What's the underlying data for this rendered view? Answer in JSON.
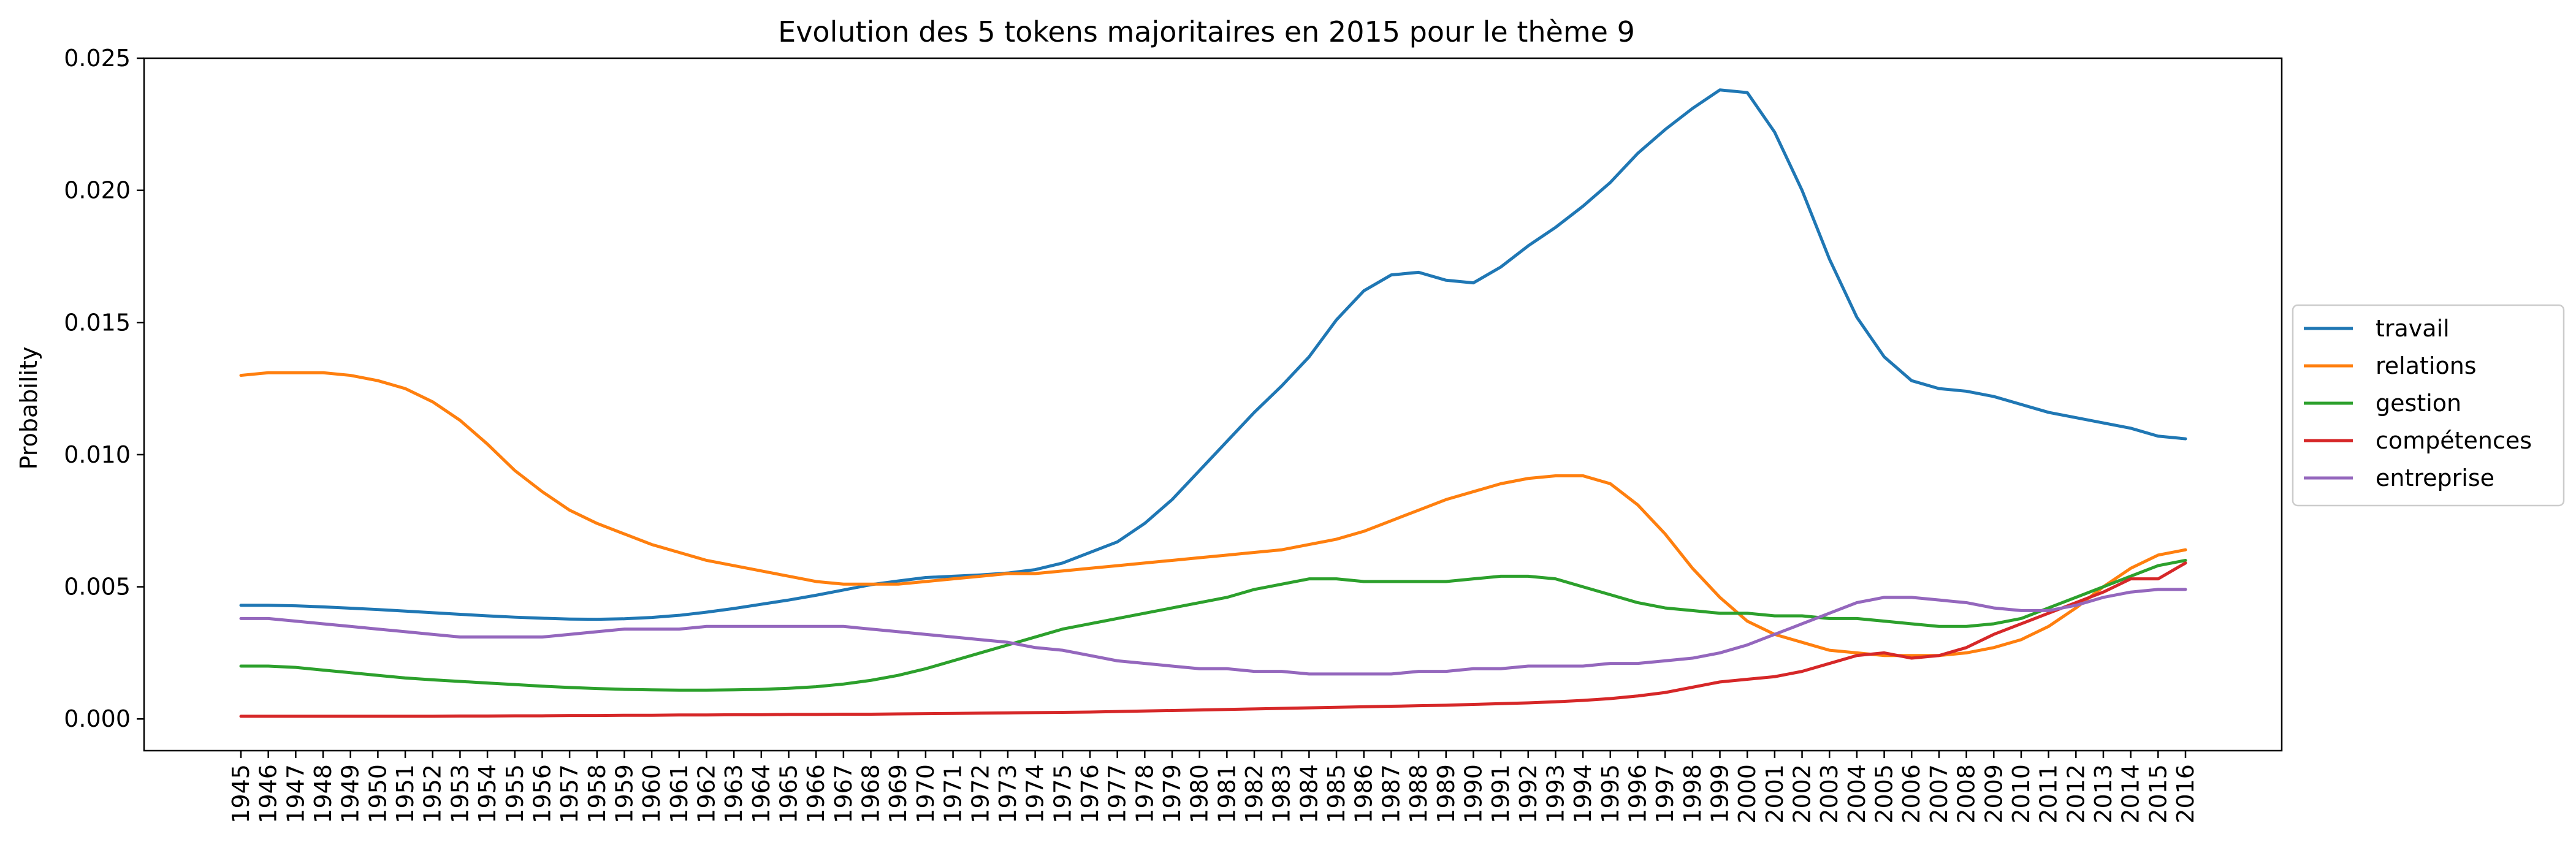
{
  "chart_data": {
    "type": "line",
    "title": "Evolution des 5 tokens majoritaires en 2015 pour le thème 9",
    "xlabel": "",
    "ylabel": "Probability",
    "ylim": [
      -0.0012,
      0.025
    ],
    "yticks": [
      "0.000",
      "0.005",
      "0.010",
      "0.015",
      "0.020",
      "0.025"
    ],
    "ytick_values": [
      0,
      0.005,
      0.01,
      0.015,
      0.02,
      0.025
    ],
    "grid": false,
    "legend_position": "center-right-outside",
    "x": [
      1945,
      1946,
      1947,
      1948,
      1949,
      1950,
      1951,
      1952,
      1953,
      1954,
      1955,
      1956,
      1957,
      1958,
      1959,
      1960,
      1961,
      1962,
      1963,
      1964,
      1965,
      1966,
      1967,
      1968,
      1969,
      1970,
      1971,
      1972,
      1973,
      1974,
      1975,
      1976,
      1977,
      1978,
      1979,
      1980,
      1981,
      1982,
      1983,
      1984,
      1985,
      1986,
      1987,
      1988,
      1989,
      1990,
      1991,
      1992,
      1993,
      1994,
      1995,
      1996,
      1997,
      1998,
      1999,
      2000,
      2001,
      2002,
      2003,
      2004,
      2005,
      2006,
      2007,
      2008,
      2009,
      2010,
      2011,
      2012,
      2013,
      2014,
      2015,
      2016
    ],
    "series": [
      {
        "name": "travail",
        "color": "#1f77b4",
        "values": [
          0.0043,
          0.0043,
          0.00428,
          0.00424,
          0.00419,
          0.00414,
          0.00408,
          0.00402,
          0.00396,
          0.0039,
          0.00385,
          0.00381,
          0.00378,
          0.00377,
          0.00379,
          0.00384,
          0.00392,
          0.00404,
          0.00418,
          0.00434,
          0.0045,
          0.00468,
          0.00488,
          0.00508,
          0.00522,
          0.00535,
          0.0054,
          0.00545,
          0.00552,
          0.00565,
          0.0059,
          0.0063,
          0.0067,
          0.0074,
          0.0083,
          0.0094,
          0.0105,
          0.0116,
          0.0126,
          0.0137,
          0.0151,
          0.0162,
          0.0168,
          0.0169,
          0.0166,
          0.0165,
          0.0171,
          0.0179,
          0.0186,
          0.0194,
          0.0203,
          0.0214,
          0.0223,
          0.0231,
          0.0238,
          0.0237,
          0.0222,
          0.02,
          0.0174,
          0.0152,
          0.0137,
          0.0128,
          0.0125,
          0.0124,
          0.0122,
          0.0119,
          0.0116,
          0.0114,
          0.0112,
          0.011,
          0.0107,
          0.0106
        ]
      },
      {
        "name": "relations",
        "color": "#ff7f0e",
        "values": [
          0.013,
          0.0131,
          0.0131,
          0.0131,
          0.013,
          0.0128,
          0.0125,
          0.012,
          0.0113,
          0.0104,
          0.0094,
          0.0086,
          0.0079,
          0.0074,
          0.007,
          0.0066,
          0.0063,
          0.006,
          0.0058,
          0.0056,
          0.0054,
          0.0052,
          0.0051,
          0.0051,
          0.0051,
          0.0052,
          0.0053,
          0.0054,
          0.0055,
          0.0055,
          0.0056,
          0.0057,
          0.0058,
          0.0059,
          0.006,
          0.0061,
          0.0062,
          0.0063,
          0.0064,
          0.0066,
          0.0068,
          0.0071,
          0.0075,
          0.0079,
          0.0083,
          0.0086,
          0.0089,
          0.0091,
          0.0092,
          0.0092,
          0.0089,
          0.0081,
          0.007,
          0.0057,
          0.0046,
          0.0037,
          0.0032,
          0.0029,
          0.0026,
          0.0025,
          0.0024,
          0.0024,
          0.0024,
          0.0025,
          0.0027,
          0.003,
          0.0035,
          0.0042,
          0.005,
          0.0057,
          0.0062,
          0.0064
        ]
      },
      {
        "name": "gestion",
        "color": "#2ca02c",
        "values": [
          0.002,
          0.002,
          0.00195,
          0.00185,
          0.00175,
          0.00165,
          0.00155,
          0.00148,
          0.00142,
          0.00136,
          0.0013,
          0.00124,
          0.00119,
          0.00115,
          0.00112,
          0.0011,
          0.00109,
          0.00109,
          0.0011,
          0.00112,
          0.00116,
          0.00122,
          0.00132,
          0.00146,
          0.00165,
          0.0019,
          0.0022,
          0.0025,
          0.0028,
          0.0031,
          0.0034,
          0.0036,
          0.0038,
          0.004,
          0.0042,
          0.0044,
          0.0046,
          0.0049,
          0.0051,
          0.0053,
          0.0053,
          0.0052,
          0.0052,
          0.0052,
          0.0052,
          0.0053,
          0.0054,
          0.0054,
          0.0053,
          0.005,
          0.0047,
          0.0044,
          0.0042,
          0.0041,
          0.004,
          0.004,
          0.0039,
          0.0039,
          0.0038,
          0.0038,
          0.0037,
          0.0036,
          0.0035,
          0.0035,
          0.0036,
          0.0038,
          0.0042,
          0.0046,
          0.005,
          0.0054,
          0.0058,
          0.006
        ]
      },
      {
        "name": "compétences",
        "color": "#d62728",
        "values": [
          0.0001,
          0.0001,
          0.0001,
          0.0001,
          0.0001,
          0.0001,
          0.0001,
          0.0001,
          0.00011,
          0.00011,
          0.00012,
          0.00012,
          0.00013,
          0.00013,
          0.00014,
          0.00014,
          0.00015,
          0.00015,
          0.00016,
          0.00016,
          0.00017,
          0.00017,
          0.00018,
          0.00018,
          0.00019,
          0.0002,
          0.00021,
          0.00022,
          0.00023,
          0.00024,
          0.00025,
          0.00026,
          0.00028,
          0.0003,
          0.00032,
          0.00034,
          0.00036,
          0.00038,
          0.0004,
          0.00042,
          0.00044,
          0.00046,
          0.00048,
          0.0005,
          0.00052,
          0.00055,
          0.00058,
          0.00061,
          0.00065,
          0.0007,
          0.00077,
          0.00087,
          0.001,
          0.0012,
          0.0014,
          0.0015,
          0.0016,
          0.0018,
          0.0021,
          0.0024,
          0.0025,
          0.0023,
          0.0024,
          0.0027,
          0.0032,
          0.0036,
          0.004,
          0.0044,
          0.0048,
          0.0053,
          0.0053,
          0.0059
        ]
      },
      {
        "name": "entreprise",
        "color": "#9467bd",
        "values": [
          0.0038,
          0.0038,
          0.0037,
          0.0036,
          0.0035,
          0.0034,
          0.0033,
          0.0032,
          0.0031,
          0.0031,
          0.0031,
          0.0031,
          0.0032,
          0.0033,
          0.0034,
          0.0034,
          0.0034,
          0.0035,
          0.0035,
          0.0035,
          0.0035,
          0.0035,
          0.0035,
          0.0034,
          0.0033,
          0.0032,
          0.0031,
          0.003,
          0.0029,
          0.0027,
          0.0026,
          0.0024,
          0.0022,
          0.0021,
          0.002,
          0.0019,
          0.0019,
          0.0018,
          0.0018,
          0.0017,
          0.0017,
          0.0017,
          0.0017,
          0.0018,
          0.0018,
          0.0019,
          0.0019,
          0.002,
          0.002,
          0.002,
          0.0021,
          0.0021,
          0.0022,
          0.0023,
          0.0025,
          0.0028,
          0.0032,
          0.0036,
          0.004,
          0.0044,
          0.0046,
          0.0046,
          0.0045,
          0.0044,
          0.0042,
          0.0041,
          0.0041,
          0.0043,
          0.0046,
          0.0048,
          0.0049,
          0.0049
        ]
      }
    ]
  }
}
